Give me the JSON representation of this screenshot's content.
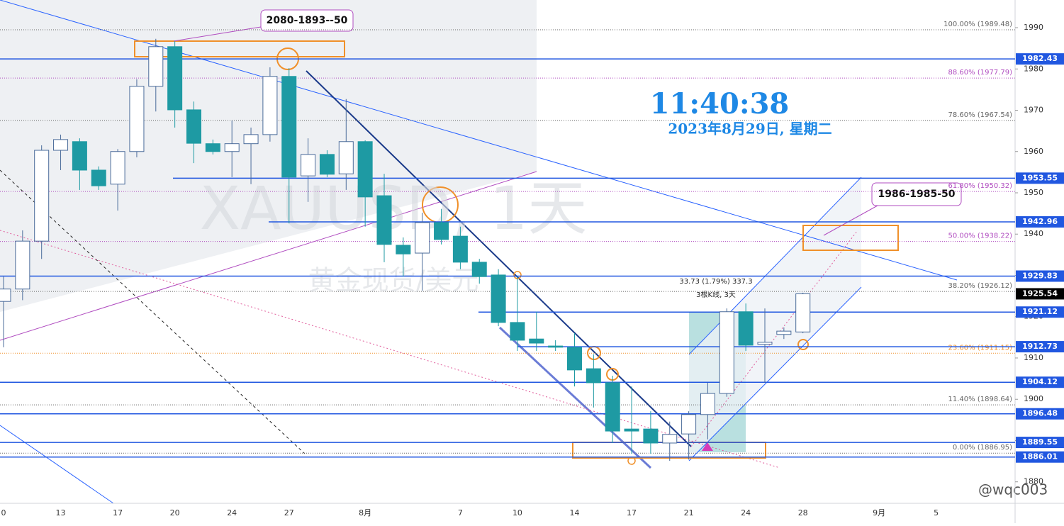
{
  "chart_data": {
    "type": "candlestick",
    "title": "XAUUSD, 1天",
    "subtitle": "黄金现货/美元",
    "clock": "11:40:38",
    "date": "2023年8月29日, 星期二",
    "watermark": "@wqc003",
    "categories": [
      "0",
      null,
      null,
      "13",
      null,
      null,
      "17",
      null,
      null,
      "20",
      null,
      null,
      "24",
      null,
      null,
      "27",
      null,
      null,
      null,
      "8月",
      null,
      null,
      null,
      null,
      "7",
      null,
      null,
      "10",
      null,
      null,
      "14",
      null,
      null,
      "17",
      null,
      null,
      "21",
      null,
      null,
      "24",
      null,
      null,
      "28",
      null,
      null,
      null,
      "9月",
      null,
      null,
      "5"
    ],
    "open": [
      1923.7,
      1926.7,
      1938.3,
      1960.3,
      1962.4,
      1955.5,
      1952.1,
      1960.0,
      1975.8,
      1985.4,
      1970.1,
      1961.9,
      1960.0,
      1961.9,
      1964.1,
      1978.2,
      1954.1,
      1959.3,
      1954.6,
      1962.4,
      1949.3,
      1937.3,
      1935.4,
      1942.8,
      1939.5,
      1933.2,
      1930.1,
      1918.6,
      1914.6,
      1912.9,
      1912.6,
      1907.4,
      1904.0,
      1892.8,
      1892.8,
      1889.4,
      1891.6,
      1896.3,
      1901.4,
      1921.2,
      1913.3,
      1915.7,
      1916.3,
      null,
      null,
      null,
      null,
      null,
      null,
      null
    ],
    "high": [
      1929.7,
      1940.9,
      1961.5,
      1964.1,
      1963.2,
      1956.4,
      1960.6,
      1977.5,
      1987.3,
      1986.7,
      1972.1,
      1962.9,
      1967.5,
      1965.8,
      1980.4,
      1980.2,
      1963.2,
      1960.3,
      1972.7,
      1962.7,
      1954.6,
      1939.2,
      1945.2,
      1946.1,
      1941.8,
      1934.0,
      1931.5,
      1929.7,
      1921.2,
      1914.3,
      1916.0,
      1910.9,
      1905.7,
      1903.1,
      1897.1,
      1894.6,
      1897.1,
      1904.0,
      1922.0,
      1923.2,
      1922.0,
      1917.4,
      1925.8,
      null,
      null,
      null,
      null,
      null,
      null,
      null
    ],
    "low": [
      1912.6,
      1924.0,
      1934.0,
      1955.5,
      1950.7,
      1950.7,
      1945.7,
      1958.6,
      1969.7,
      1965.8,
      1957.2,
      1959.3,
      1953.8,
      1952.1,
      1962.4,
      1942.6,
      1947.8,
      1953.8,
      1950.7,
      1941.8,
      1933.2,
      1929.7,
      1926.3,
      1937.5,
      1931.5,
      1928.0,
      1917.7,
      1911.7,
      1911.7,
      1911.7,
      1903.1,
      1898.0,
      1889.4,
      1886.8,
      1886.8,
      1885.1,
      1885.4,
      1890.3,
      1900.6,
      1911.7,
      1904.0,
      1914.6,
      1916.0,
      null,
      null,
      null,
      null,
      null,
      null,
      null
    ],
    "close": [
      1926.7,
      1938.3,
      1960.3,
      1962.9,
      1955.5,
      1951.7,
      1960.0,
      1975.8,
      1985.4,
      1970.1,
      1962.0,
      1960.0,
      1961.9,
      1964.1,
      1978.2,
      1953.8,
      1959.3,
      1954.5,
      1962.4,
      1949.0,
      1937.5,
      1935.2,
      1942.8,
      1938.7,
      1933.2,
      1929.7,
      1918.6,
      1914.3,
      1913.6,
      1912.6,
      1907.1,
      1904.0,
      1892.3,
      1892.3,
      1889.4,
      1891.5,
      1896.3,
      1901.4,
      1921.2,
      1913.1,
      1913.8,
      1916.5,
      1925.54,
      null,
      null,
      null,
      null,
      null,
      null,
      null
    ],
    "up_color": "#ffffff",
    "down_color": "#1e9aa3",
    "level_color": "#2157e0",
    "ylim": [
      1874.8,
      1996.7
    ],
    "yticks": [
      1880,
      1890,
      1900,
      1910,
      1920,
      1930,
      1940,
      1950,
      1960,
      1970,
      1980,
      1990
    ],
    "levels": [
      1982.43,
      1953.55,
      1942.96,
      1929.83,
      1921.12,
      1912.73,
      1904.12,
      1896.48,
      1889.55,
      1886.01
    ],
    "current_price": 1925.54,
    "fib_levels": [
      {
        "value": 1989.48,
        "label": "100.00% (1989.48)",
        "color": "#666666"
      },
      {
        "value": 1977.79,
        "label": "88.60% (1977.79)",
        "color": "#b04cc0"
      },
      {
        "value": 1967.54,
        "label": "78.60% (1967.54)",
        "color": "#666666"
      },
      {
        "value": 1950.32,
        "label": "61.80% (1950.32)",
        "color": "#b04cc0"
      },
      {
        "value": 1938.22,
        "label": "50.00% (1938.22)",
        "color": "#b04cc0"
      },
      {
        "value": 1926.12,
        "label": "38.20% (1926.12)",
        "color": "#666666"
      },
      {
        "value": 1911.15,
        "label": "23.60% (1911.15)",
        "color": "#f0902a"
      },
      {
        "value": 1898.64,
        "label": "11.40% (1898.64)",
        "color": "#666666"
      },
      {
        "value": 1886.95,
        "label": "0.00% (1886.95)",
        "color": "#666666"
      }
    ],
    "annotations": [
      "2080-1893--50",
      "1986-1985-50",
      "33.73 (1.79%) 337.3",
      "3根K线, 3天"
    ]
  }
}
